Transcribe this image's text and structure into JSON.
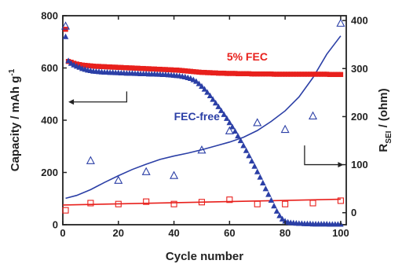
{
  "chart_data": {
    "type": "scatter",
    "xlabel": "Cycle number",
    "ylabel_left": "Capacity / mAh g",
    "ylabel_left_sup": "-1",
    "ylabel_right_main": "R",
    "ylabel_right_sub": "SEI",
    "ylabel_right_unit": " / (ohm)",
    "xlim": [
      0,
      102
    ],
    "ylim_left": [
      0,
      800
    ],
    "ylim_right": [
      -25,
      410
    ],
    "x_ticks": [
      0,
      20,
      40,
      60,
      80,
      100
    ],
    "y_left_ticks": [
      0,
      200,
      400,
      600,
      800
    ],
    "y_right_ticks": [
      0,
      100,
      200,
      300,
      400
    ],
    "colors": {
      "red": "#e8201c",
      "blue": "#2b3fa6",
      "axis": "#222222"
    },
    "annotations": [
      {
        "text": "5% FEC",
        "color": "#e8201c"
      },
      {
        "text": "FEC-free",
        "color": "#2b3fa6"
      }
    ],
    "series": [
      {
        "name": "5% FEC",
        "axis": "left",
        "marker": "filled-square",
        "color": "#e8201c",
        "x": [
          1,
          2,
          3,
          4,
          5,
          6,
          7,
          8,
          9,
          10,
          11,
          12,
          13,
          14,
          15,
          16,
          17,
          18,
          19,
          20,
          21,
          22,
          23,
          24,
          25,
          26,
          27,
          28,
          29,
          30,
          31,
          32,
          33,
          34,
          35,
          36,
          37,
          38,
          39,
          40,
          41,
          42,
          43,
          44,
          45,
          46,
          47,
          48,
          49,
          50,
          51,
          52,
          53,
          54,
          55,
          56,
          57,
          58,
          59,
          60,
          61,
          62,
          63,
          64,
          65,
          66,
          67,
          68,
          69,
          70,
          71,
          72,
          73,
          74,
          75,
          76,
          77,
          78,
          79,
          80,
          81,
          82,
          83,
          84,
          85,
          86,
          87,
          88,
          89,
          90,
          91,
          92,
          93,
          94,
          95,
          96,
          97,
          98,
          99,
          100
        ],
        "y": [
          748,
          625,
          622,
          618,
          615,
          613,
          611,
          610,
          609,
          608,
          607,
          606,
          606,
          605,
          605,
          604,
          604,
          603,
          603,
          602,
          602,
          601,
          601,
          600,
          600,
          599,
          599,
          598,
          598,
          597,
          597,
          596,
          596,
          595,
          595,
          594,
          594,
          593,
          593,
          592,
          592,
          591,
          590,
          589,
          588,
          587,
          586,
          585,
          584,
          583,
          583,
          582,
          582,
          581,
          581,
          580,
          580,
          580,
          579,
          579,
          579,
          579,
          578,
          578,
          578,
          578,
          578,
          577,
          577,
          577,
          577,
          577,
          577,
          577,
          577,
          576,
          576,
          576,
          576,
          576,
          576,
          576,
          576,
          576,
          576,
          576,
          576,
          576,
          576,
          576,
          576,
          576,
          576,
          576,
          576,
          575,
          575,
          575,
          575,
          575
        ]
      },
      {
        "name": "FEC-free",
        "axis": "left",
        "marker": "filled-triangle",
        "color": "#2b3fa6",
        "x": [
          1,
          2,
          3,
          4,
          5,
          6,
          7,
          8,
          9,
          10,
          11,
          12,
          13,
          14,
          15,
          16,
          17,
          18,
          19,
          20,
          21,
          22,
          23,
          24,
          25,
          26,
          27,
          28,
          29,
          30,
          31,
          32,
          33,
          34,
          35,
          36,
          37,
          38,
          39,
          40,
          41,
          42,
          43,
          44,
          45,
          46,
          47,
          48,
          49,
          50,
          51,
          52,
          53,
          54,
          55,
          56,
          57,
          58,
          59,
          60,
          61,
          62,
          63,
          64,
          65,
          66,
          67,
          68,
          69,
          70,
          71,
          72,
          73,
          74,
          75,
          76,
          77,
          78,
          79,
          80,
          81,
          82,
          83,
          84,
          85,
          86,
          87,
          88,
          89,
          90,
          91,
          92,
          93,
          94,
          95,
          96,
          97,
          98,
          99,
          100
        ],
        "y": [
          720,
          628,
          618,
          612,
          607,
          603,
          598,
          595,
          592,
          590,
          588,
          587,
          586,
          585,
          584,
          584,
          583,
          583,
          582,
          582,
          581,
          581,
          580,
          580,
          580,
          579,
          579,
          578,
          578,
          578,
          577,
          577,
          577,
          576,
          576,
          575,
          575,
          574,
          573,
          572,
          571,
          570,
          568,
          566,
          563,
          560,
          555,
          549,
          540,
          530,
          519,
          507,
          494,
          480,
          466,
          452,
          437,
          422,
          407,
          391,
          375,
          358,
          340,
          322,
          303,
          284,
          264,
          244,
          224,
          203,
          182,
          160,
          138,
          116,
          94,
          72,
          52,
          35,
          22,
          14,
          10,
          8,
          7,
          6,
          5,
          5,
          4,
          4,
          4,
          3,
          3,
          3,
          3,
          3,
          3,
          2,
          2,
          2,
          2,
          2
        ]
      },
      {
        "name": "5% FEC R_SEI",
        "axis": "right",
        "marker": "open-square",
        "color": "#e8201c",
        "x": [
          1,
          10,
          20,
          30,
          40,
          50,
          60,
          70,
          80,
          90,
          100
        ],
        "y": [
          5,
          20,
          18,
          23,
          18,
          22,
          27,
          18,
          18,
          20,
          25
        ],
        "fit": {
          "x": [
            0,
            100
          ],
          "y": [
            16,
            28
          ]
        }
      },
      {
        "name": "FEC-free R_SEI",
        "axis": "right",
        "marker": "open-triangle",
        "color": "#2b3fa6",
        "x": [
          1,
          10,
          20,
          30,
          40,
          50,
          60,
          70,
          80,
          90,
          100
        ],
        "y": [
          388,
          108,
          67,
          85,
          77,
          130,
          170,
          187,
          173,
          201,
          394
        ],
        "fit": {
          "x": [
            1,
            5,
            10,
            15,
            20,
            25,
            30,
            35,
            40,
            45,
            50,
            55,
            60,
            65,
            70,
            75,
            80,
            85,
            90,
            95,
            100
          ],
          "y": [
            30,
            36,
            48,
            63,
            77,
            90,
            101,
            111,
            118,
            124,
            131,
            139,
            147,
            157,
            171,
            190,
            212,
            241,
            281,
            330,
            368
          ]
        }
      }
    ]
  }
}
